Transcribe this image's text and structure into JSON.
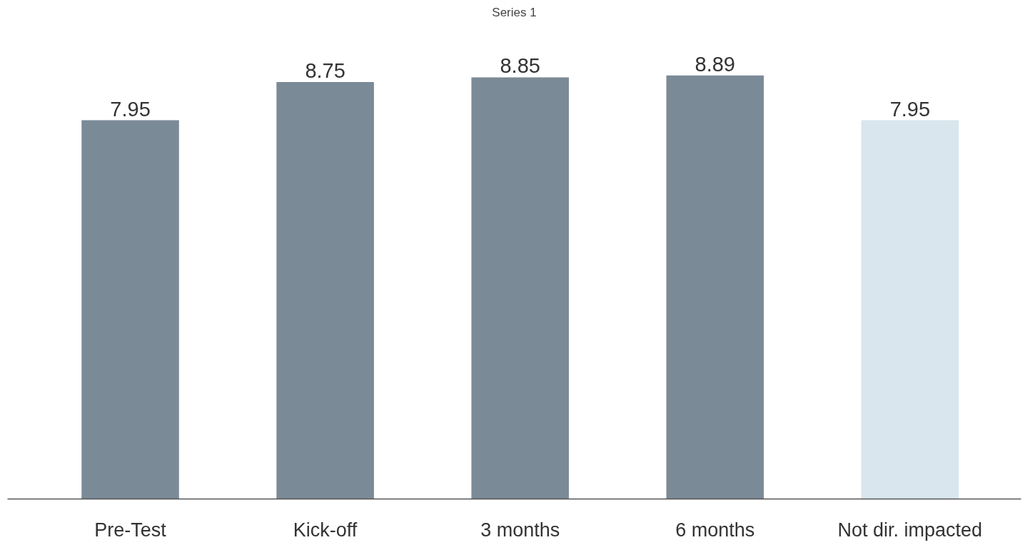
{
  "chart_data": {
    "type": "bar",
    "title": "Series 1",
    "categories": [
      "Pre-Test",
      "Kick-off",
      "3 months",
      "6 months",
      "Not dir. impacted"
    ],
    "values": [
      7.95,
      8.75,
      8.85,
      8.89,
      7.95
    ],
    "colors": [
      "#7b8a97",
      "#7b8a97",
      "#7b8a97",
      "#7b8a97",
      "#d9e6ee"
    ],
    "data_labels": true,
    "tick_labels": "x"
  }
}
